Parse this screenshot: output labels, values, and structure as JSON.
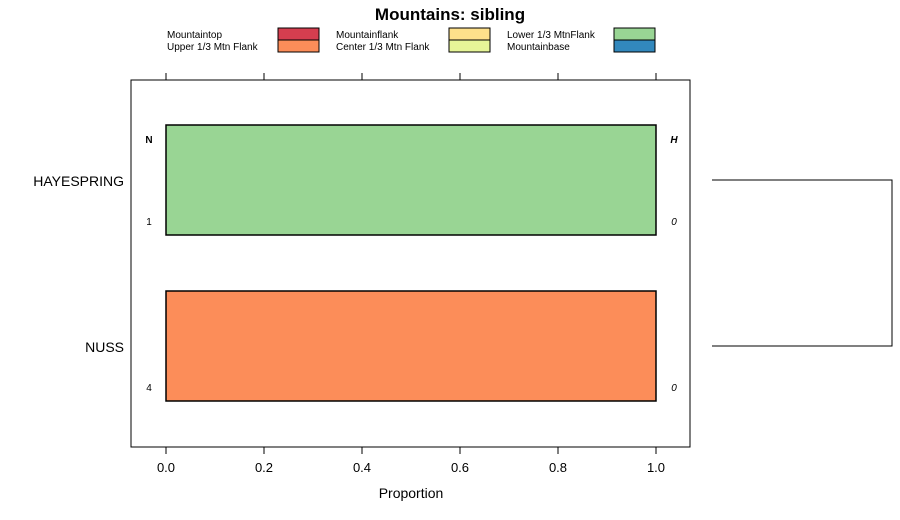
{
  "chart_data": {
    "type": "bar",
    "orientation": "horizontal",
    "stacked": true,
    "title": "Mountains: sibling",
    "xlabel": "Proportion",
    "ylabel": "",
    "xlim": [
      -0.07,
      1.07
    ],
    "x_ticks": [
      "0.0",
      "0.2",
      "0.4",
      "0.6",
      "0.8",
      "1.0"
    ],
    "x_tick_values": [
      0,
      0.2,
      0.4,
      0.6,
      0.8,
      1.0
    ],
    "categories": [
      "HAYESPRING",
      "NUSS"
    ],
    "n_header": "N",
    "h_header": "H",
    "n_values": [
      "1",
      "4"
    ],
    "h_values": [
      "0",
      "0"
    ],
    "legend": {
      "placement": "top",
      "entries": [
        {
          "name": "Mountaintop",
          "color": "#d53e4f"
        },
        {
          "name": "Upper 1/3 Mtn Flank",
          "color": "#fc8d59"
        },
        {
          "name": "Mountainflank",
          "color": "#fee08b"
        },
        {
          "name": "Center 1/3 Mtn Flank",
          "color": "#e6f598"
        },
        {
          "name": "Lower 1/3 MtnFlank",
          "color": "#99d594"
        },
        {
          "name": "Mountainbase",
          "color": "#3288bd"
        }
      ]
    },
    "series": [
      {
        "name": "Mountaintop",
        "values": [
          0,
          0
        ]
      },
      {
        "name": "Upper 1/3 Mtn Flank",
        "values": [
          0,
          1
        ]
      },
      {
        "name": "Mountainflank",
        "values": [
          0,
          0
        ]
      },
      {
        "name": "Center 1/3 Mtn Flank",
        "values": [
          0,
          0
        ]
      },
      {
        "name": "Lower 1/3 MtnFlank",
        "values": [
          1,
          0
        ]
      },
      {
        "name": "Mountainbase",
        "values": [
          0,
          0
        ]
      }
    ],
    "dendrogram": {
      "merge": [
        "HAYESPRING",
        "NUSS"
      ]
    }
  }
}
